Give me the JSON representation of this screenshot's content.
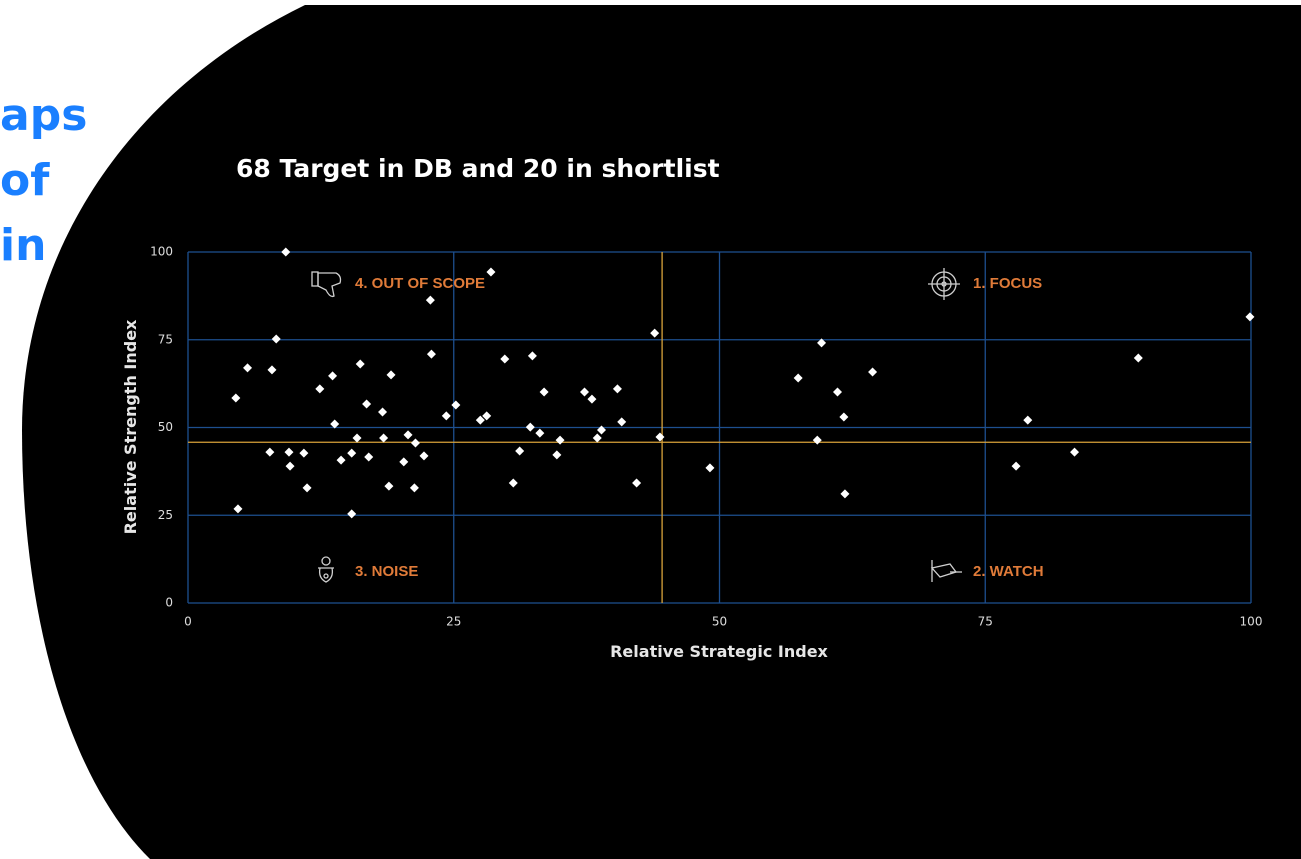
{
  "page": {
    "side_text": [
      "aps",
      "of",
      "in"
    ]
  },
  "chart_data": {
    "type": "scatter",
    "title": "68 Target in DB and 20 in shortlist",
    "x_label": "Relative Strategic Index",
    "y_label": "Relative Strength Index",
    "quadrants": [
      "1. FOCUS",
      "2. WATCH",
      "3. NOISE",
      "4. OUT OF SCOPE"
    ],
    "xlim": [
      0,
      100
    ],
    "ylim": [
      0,
      100
    ],
    "xticks": [
      0,
      25,
      50,
      75,
      100
    ],
    "yticks": [
      0,
      25,
      50,
      75,
      100
    ],
    "grid": true,
    "grid_color": "#1d4f8f",
    "x_threshold": 44.6,
    "y_threshold": 45.8,
    "threshold_color": "#d9a23a",
    "color": "#ffffff",
    "x": [
      9.2,
      28.5,
      22.8,
      8.3,
      43.9,
      99.9,
      5.6,
      7.9,
      22.9,
      16.2,
      13.6,
      12.4,
      19.1,
      16.8,
      4.5,
      18.3,
      24.3,
      25.2,
      13.8,
      29.8,
      32.4,
      33.5,
      27.5,
      28.1,
      32.2,
      33.1,
      37.3,
      38.0,
      40.4,
      40.8,
      38.9,
      38.5,
      35.0,
      34.7,
      31.2,
      30.6,
      42.2,
      44.4,
      49.1,
      7.7,
      9.5,
      9.6,
      10.9,
      11.2,
      14.4,
      15.4,
      15.9,
      17.0,
      18.4,
      20.3,
      20.7,
      21.4,
      22.2,
      18.9,
      21.3,
      15.4,
      4.7,
      57.4,
      59.6,
      61.1,
      61.7,
      64.4,
      59.2,
      61.8,
      77.9,
      79.0,
      83.4,
      89.4
    ],
    "y": [
      100,
      94.3,
      86.3,
      75.2,
      76.9,
      81.5,
      67,
      66.4,
      70.9,
      68.1,
      64.7,
      61,
      65,
      56.7,
      58.4,
      54.4,
      53.3,
      56.4,
      51,
      69.5,
      70.4,
      60.1,
      52.1,
      53.3,
      50.1,
      48.4,
      60.1,
      58.1,
      61,
      51.6,
      49.3,
      47,
      46.4,
      42.2,
      43.3,
      34.2,
      34.2,
      47.3,
      38.5,
      43,
      43,
      39,
      42.7,
      32.8,
      40.7,
      42.7,
      47,
      41.6,
      47,
      40.2,
      47.9,
      45.6,
      41.9,
      33.3,
      32.8,
      25.4,
      26.8,
      64.1,
      74.1,
      60.1,
      53,
      65.8,
      46.4,
      31.1,
      39,
      52.1,
      43,
      69.8
    ]
  }
}
